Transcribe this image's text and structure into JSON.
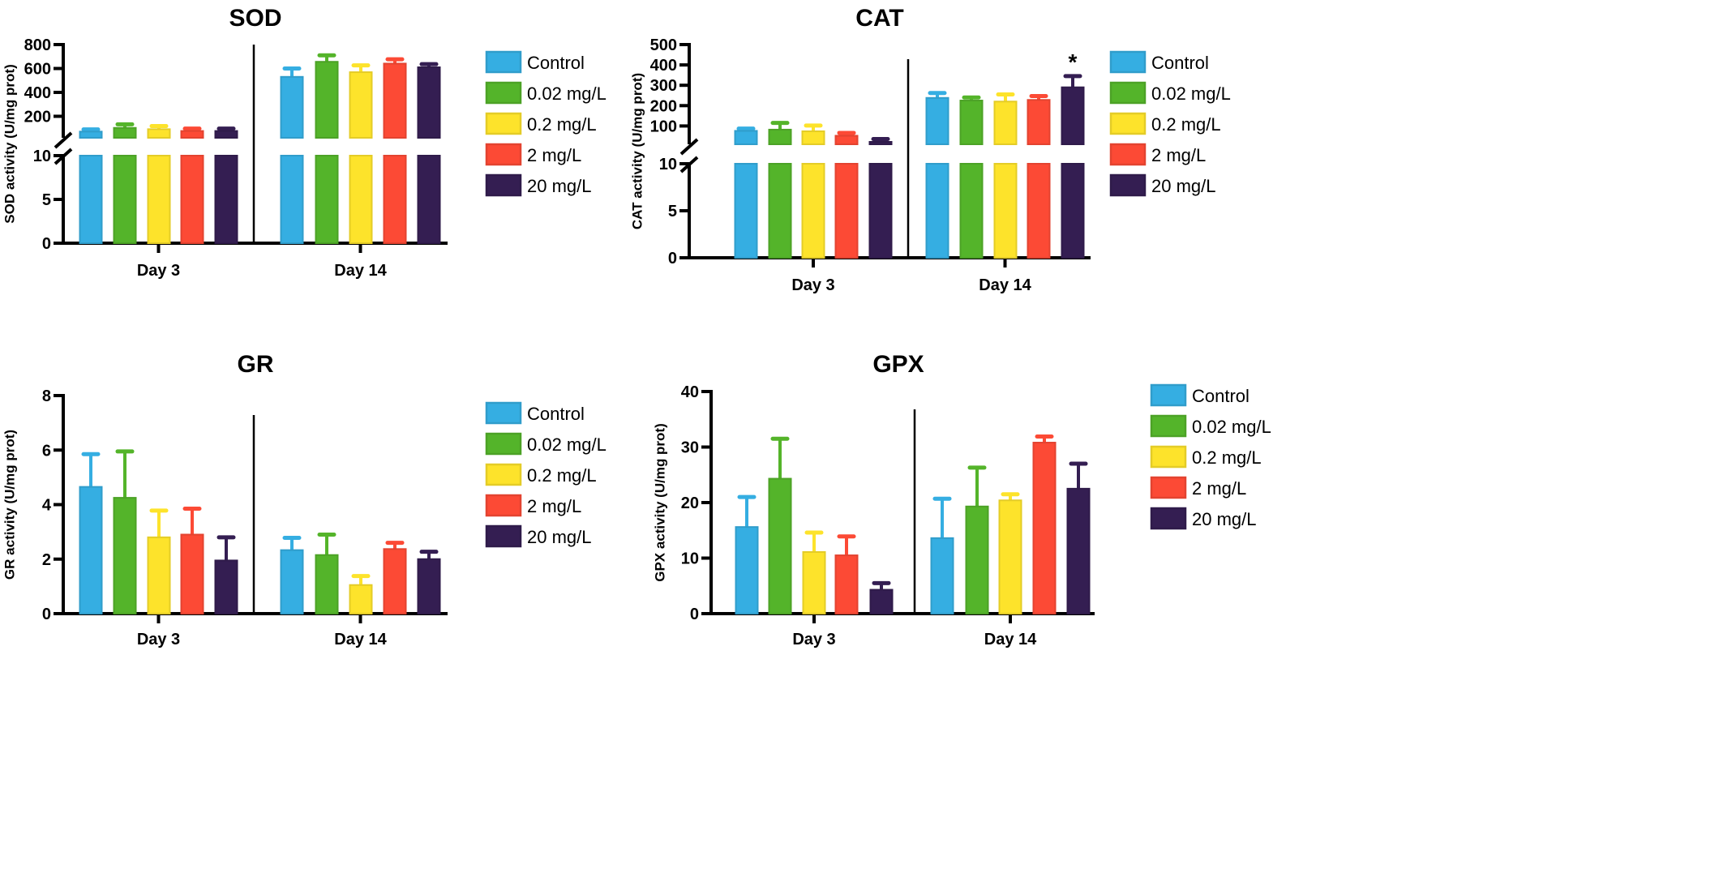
{
  "legend": [
    "Control",
    "0.02 mg/L",
    "0.2 mg/L",
    "2 mg/L",
    "20 mg/L"
  ],
  "colors": {
    "Control": "#35AEE2",
    "0.02 mg/L": "#54B42A",
    "0.2 mg/L": "#FDE32B",
    "2 mg/L": "#FC4A35",
    "20 mg/L": "#341E52"
  },
  "chart_data": [
    {
      "type": "bar",
      "title": "SOD",
      "ylabel": "SOD activity (U/mg prot)",
      "xlabel": "",
      "categories": [
        "Day 3",
        "Day 14"
      ],
      "y_axis": {
        "broken": true,
        "lower_range": [
          0,
          10
        ],
        "lower_ticks": [
          "0",
          "5",
          "10"
        ],
        "upper_range": [
          20,
          800
        ],
        "upper_ticks": [
          "200",
          "400",
          "600",
          "800"
        ]
      },
      "series": [
        {
          "name": "Control",
          "values": [
            72,
            530
          ],
          "error_upper": [
            90,
            600
          ]
        },
        {
          "name": "0.02 mg/L",
          "values": [
            103,
            656
          ],
          "error_upper": [
            133,
            710
          ]
        },
        {
          "name": "0.2 mg/L",
          "values": [
            92,
            569
          ],
          "error_upper": [
            118,
            626
          ]
        },
        {
          "name": "2 mg/L",
          "values": [
            77,
            641
          ],
          "error_upper": [
            97,
            677
          ]
        },
        {
          "name": "20 mg/L",
          "values": [
            77,
            610
          ],
          "error_upper": [
            97,
            636
          ]
        }
      ],
      "annotations": []
    },
    {
      "type": "bar",
      "title": "CAT",
      "ylabel": "CAT activity (U/mg prot)",
      "xlabel": "",
      "categories": [
        "Day 3",
        "Day 14"
      ],
      "y_axis": {
        "broken": true,
        "lower_range": [
          0,
          10
        ],
        "lower_ticks": [
          "0",
          "5",
          "10"
        ],
        "upper_range": [
          10,
          500
        ],
        "upper_ticks": [
          "100",
          "200",
          "300",
          "400",
          "500"
        ]
      },
      "series": [
        {
          "name": "Control",
          "values": [
            76,
            238
          ],
          "error_upper": [
            87,
            262
          ]
        },
        {
          "name": "0.02 mg/L",
          "values": [
            82,
            225
          ],
          "error_upper": [
            115,
            240
          ]
        },
        {
          "name": "0.2 mg/L",
          "values": [
            74,
            220
          ],
          "error_upper": [
            102,
            255
          ]
        },
        {
          "name": "2 mg/L",
          "values": [
            52,
            228
          ],
          "error_upper": [
            66,
            247
          ]
        },
        {
          "name": "20 mg/L",
          "values": [
            22,
            290
          ],
          "error_upper": [
            36,
            345
          ]
        }
      ],
      "annotations": [
        {
          "text": "*",
          "category": "Day 14",
          "series": "20 mg/L"
        }
      ]
    },
    {
      "type": "bar",
      "title": "GR",
      "ylabel": "GR activity (U/mg prot)",
      "xlabel": "",
      "categories": [
        "Day 3",
        "Day 14"
      ],
      "y_axis": {
        "broken": false,
        "range": [
          0,
          8
        ],
        "ticks": [
          "0",
          "2",
          "4",
          "6",
          "8"
        ]
      },
      "series": [
        {
          "name": "Control",
          "values": [
            4.65,
            2.33
          ],
          "error_upper": [
            5.85,
            2.78
          ]
        },
        {
          "name": "0.02 mg/L",
          "values": [
            4.25,
            2.15
          ],
          "error_upper": [
            5.95,
            2.9
          ]
        },
        {
          "name": "0.2 mg/L",
          "values": [
            2.8,
            1.05
          ],
          "error_upper": [
            3.78,
            1.38
          ]
        },
        {
          "name": "2 mg/L",
          "values": [
            2.9,
            2.37
          ],
          "error_upper": [
            3.85,
            2.6
          ]
        },
        {
          "name": "20 mg/L",
          "values": [
            1.95,
            2.0
          ],
          "error_upper": [
            2.8,
            2.27
          ]
        }
      ],
      "annotations": []
    },
    {
      "type": "bar",
      "title": "GPX",
      "ylabel": "GPX activity (U/mg prot)",
      "xlabel": "",
      "categories": [
        "Day 3",
        "Day 14"
      ],
      "y_axis": {
        "broken": false,
        "range": [
          0,
          40
        ],
        "ticks": [
          "0",
          "10",
          "20",
          "30",
          "40"
        ]
      },
      "series": [
        {
          "name": "Control",
          "values": [
            15.6,
            13.6
          ],
          "error_upper": [
            21,
            20.7
          ]
        },
        {
          "name": "0.02 mg/L",
          "values": [
            24.3,
            19.3
          ],
          "error_upper": [
            31.5,
            26.3
          ]
        },
        {
          "name": "0.2 mg/L",
          "values": [
            11.1,
            20.4
          ],
          "error_upper": [
            14.6,
            21.5
          ]
        },
        {
          "name": "2 mg/L",
          "values": [
            10.5,
            30.8
          ],
          "error_upper": [
            13.9,
            31.9
          ]
        },
        {
          "name": "20 mg/L",
          "values": [
            4.3,
            22.5
          ],
          "error_upper": [
            5.5,
            27
          ]
        }
      ],
      "annotations": []
    }
  ]
}
